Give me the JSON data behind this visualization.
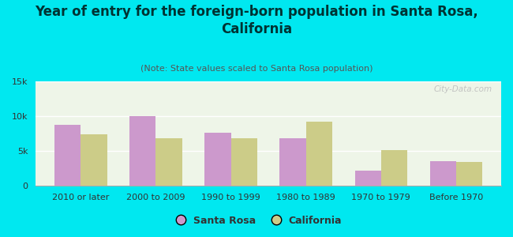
{
  "title": "Year of entry for the foreign-born population in Santa Rosa,\nCalifornia",
  "subtitle": "(Note: State values scaled to Santa Rosa population)",
  "categories": [
    "2010 or later",
    "2000 to 2009",
    "1990 to 1999",
    "1980 to 1989",
    "1970 to 1979",
    "Before 1970"
  ],
  "santa_rosa": [
    8800,
    10000,
    7600,
    6800,
    2200,
    3600
  ],
  "california": [
    7400,
    6800,
    6800,
    9200,
    5100,
    3400
  ],
  "santa_rosa_color": "#cc99cc",
  "california_color": "#cccc88",
  "background_color": "#00e8f0",
  "ylim": [
    0,
    15000
  ],
  "yticks": [
    0,
    5000,
    10000,
    15000
  ],
  "ytick_labels": [
    "0",
    "5k",
    "10k",
    "15k"
  ],
  "bar_width": 0.35,
  "legend_labels": [
    "Santa Rosa",
    "California"
  ],
  "watermark": "City-Data.com",
  "title_fontsize": 12,
  "subtitle_fontsize": 8,
  "tick_fontsize": 8,
  "legend_fontsize": 9
}
